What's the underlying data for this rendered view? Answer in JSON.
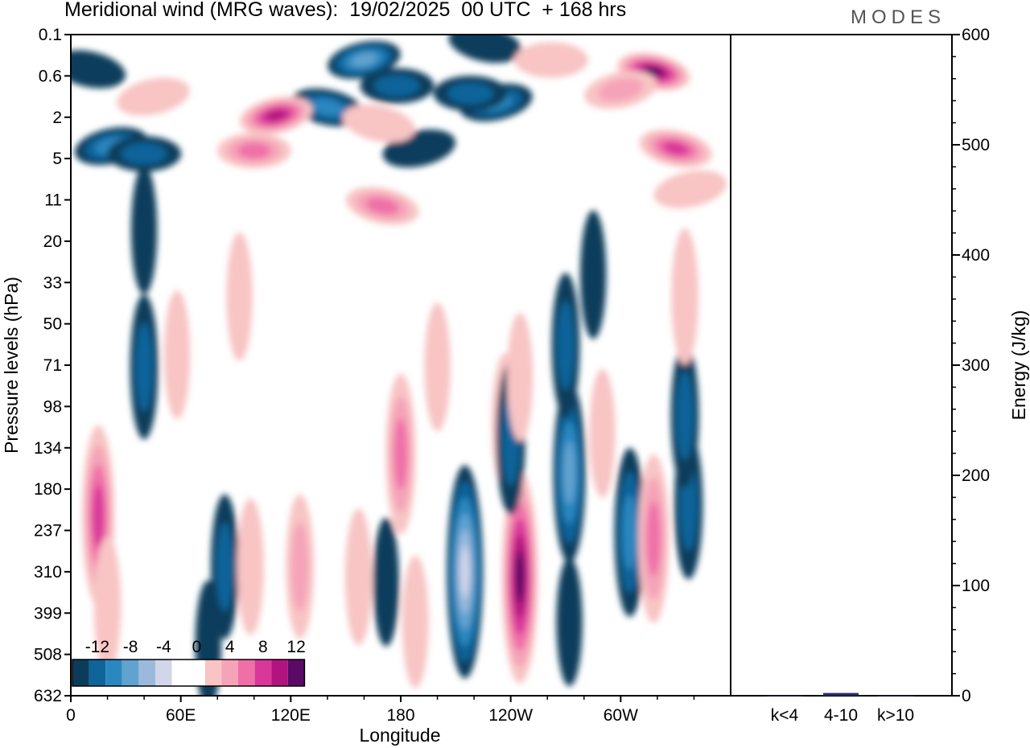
{
  "header": {
    "title": "Meridional wind (MRG waves):  19/02/2025  00 UTC  + 168 hrs",
    "brand": "MODES"
  },
  "colors": {
    "neg": [
      "#0c3c5c",
      "#0f649a",
      "#2b87bf",
      "#62a2cf",
      "#9cb9db",
      "#d3d5e8"
    ],
    "zero": "#ffffff",
    "pos": [
      "#f8c4c4",
      "#f5a3b8",
      "#ef6fa7",
      "#d9379a",
      "#b2137f",
      "#5b0a65"
    ],
    "energy_bar": "#2a2a6e"
  },
  "chart_data": [
    {
      "type": "heatmap",
      "title": "Meridional wind (MRG waves):  19/02/2025  00 UTC  + 168 hrs",
      "xlabel": "Longitude",
      "ylabel": "Pressure levels (hPa)",
      "x_ticks": [
        "0",
        "60E",
        "120E",
        "180",
        "120W",
        "60W"
      ],
      "x_range_deg": [
        0,
        360
      ],
      "y_ticks": [
        "0.1",
        "0.6",
        "2",
        "5",
        "11",
        "20",
        "33",
        "50",
        "71",
        "98",
        "134",
        "180",
        "237",
        "310",
        "399",
        "508",
        "632"
      ],
      "colorbar": {
        "labels": [
          "-12",
          "-8",
          "-4",
          "0",
          "4",
          "8",
          "12"
        ],
        "levels": [
          -14,
          -12,
          -10,
          -8,
          -6,
          -4,
          -2,
          2,
          4,
          6,
          8,
          10,
          12,
          14
        ]
      },
      "features": [
        {
          "lon": 160,
          "lev": 0.3,
          "value": -9.5
        },
        {
          "lon": 178,
          "lev": 0.8,
          "value": -5
        },
        {
          "lon": 140,
          "lev": 1.5,
          "value": -6
        },
        {
          "lon": 22,
          "lev": 3.8,
          "value": -6
        },
        {
          "lon": 40,
          "lev": 4.5,
          "value": -4
        },
        {
          "lon": 10,
          "lev": 0.45,
          "value": -2
        },
        {
          "lon": 232,
          "lev": 1.3,
          "value": -6.5
        },
        {
          "lon": 218,
          "lev": 1.0,
          "value": -4
        },
        {
          "lon": 226,
          "lev": 0.15,
          "value": -3
        },
        {
          "lon": 190,
          "lev": 4,
          "value": -3
        },
        {
          "lon": 270,
          "lev": 5.5,
          "value": -1.5
        },
        {
          "lon": 318,
          "lev": 0.5,
          "value": 13.5
        },
        {
          "lon": 300,
          "lev": 0.9,
          "value": 5
        },
        {
          "lon": 262,
          "lev": 0.3,
          "value": 3
        },
        {
          "lon": 330,
          "lev": 4,
          "value": 8
        },
        {
          "lon": 112,
          "lev": 1.9,
          "value": 10
        },
        {
          "lon": 100,
          "lev": 4.2,
          "value": 6
        },
        {
          "lon": 170,
          "lev": 12,
          "value": 7
        },
        {
          "lon": 45,
          "lev": 1.1,
          "value": 2
        },
        {
          "lon": 40,
          "lev": 17,
          "value": -2
        },
        {
          "lon": 168,
          "lev": 2.3,
          "value": 3
        },
        {
          "lon": 338,
          "lev": 9,
          "value": 3
        },
        {
          "lon": 15,
          "lev": 215,
          "value": 8.5
        },
        {
          "lon": 20,
          "lev": 380,
          "value": 3
        },
        {
          "lon": 84,
          "lev": 300,
          "value": -4
        },
        {
          "lon": 75,
          "lev": 480,
          "value": -2
        },
        {
          "lon": 98,
          "lev": 300,
          "value": 3
        },
        {
          "lon": 125,
          "lev": 300,
          "value": 4
        },
        {
          "lon": 157,
          "lev": 320,
          "value": 3
        },
        {
          "lon": 180,
          "lev": 140,
          "value": 6
        },
        {
          "lon": 188,
          "lev": 420,
          "value": 2.5
        },
        {
          "lon": 172,
          "lev": 330,
          "value": -2
        },
        {
          "lon": 215,
          "lev": 310,
          "value": -12.5
        },
        {
          "lon": 245,
          "lev": 320,
          "value": 12.5
        },
        {
          "lon": 237,
          "lev": 110,
          "value": 3
        },
        {
          "lon": 240,
          "lev": 125,
          "value": -5
        },
        {
          "lon": 272,
          "lev": 160,
          "value": -8.5
        },
        {
          "lon": 272,
          "lev": 420,
          "value": -2
        },
        {
          "lon": 290,
          "lev": 120,
          "value": 2
        },
        {
          "lon": 305,
          "lev": 240,
          "value": -7
        },
        {
          "lon": 318,
          "lev": 250,
          "value": 7
        },
        {
          "lon": 337,
          "lev": 200,
          "value": -4.5
        },
        {
          "lon": 335,
          "lev": 420,
          "value": -1.5
        },
        {
          "lon": 40,
          "lev": 72,
          "value": -4
        },
        {
          "lon": 270,
          "lev": 60,
          "value": -4
        },
        {
          "lon": 335,
          "lev": 105,
          "value": -4
        },
        {
          "lon": 335,
          "lev": 38,
          "value": 3
        },
        {
          "lon": 200,
          "lev": 72,
          "value": 2
        },
        {
          "lon": 245,
          "lev": 78,
          "value": 2
        },
        {
          "lon": 92,
          "lev": 38,
          "value": 2
        },
        {
          "lon": 58,
          "lev": 65,
          "value": 2
        },
        {
          "lon": 285,
          "lev": 30,
          "value": -2
        }
      ]
    },
    {
      "type": "bar",
      "categories": [
        "k<4",
        "4-10",
        "k>10"
      ],
      "values": [
        0.3,
        2.5,
        0.3
      ],
      "ylabel": "Energy (J/kg)",
      "y_ticks": [
        "0",
        "100",
        "200",
        "300",
        "400",
        "500",
        "600"
      ],
      "ylim": [
        0,
        600
      ]
    }
  ]
}
